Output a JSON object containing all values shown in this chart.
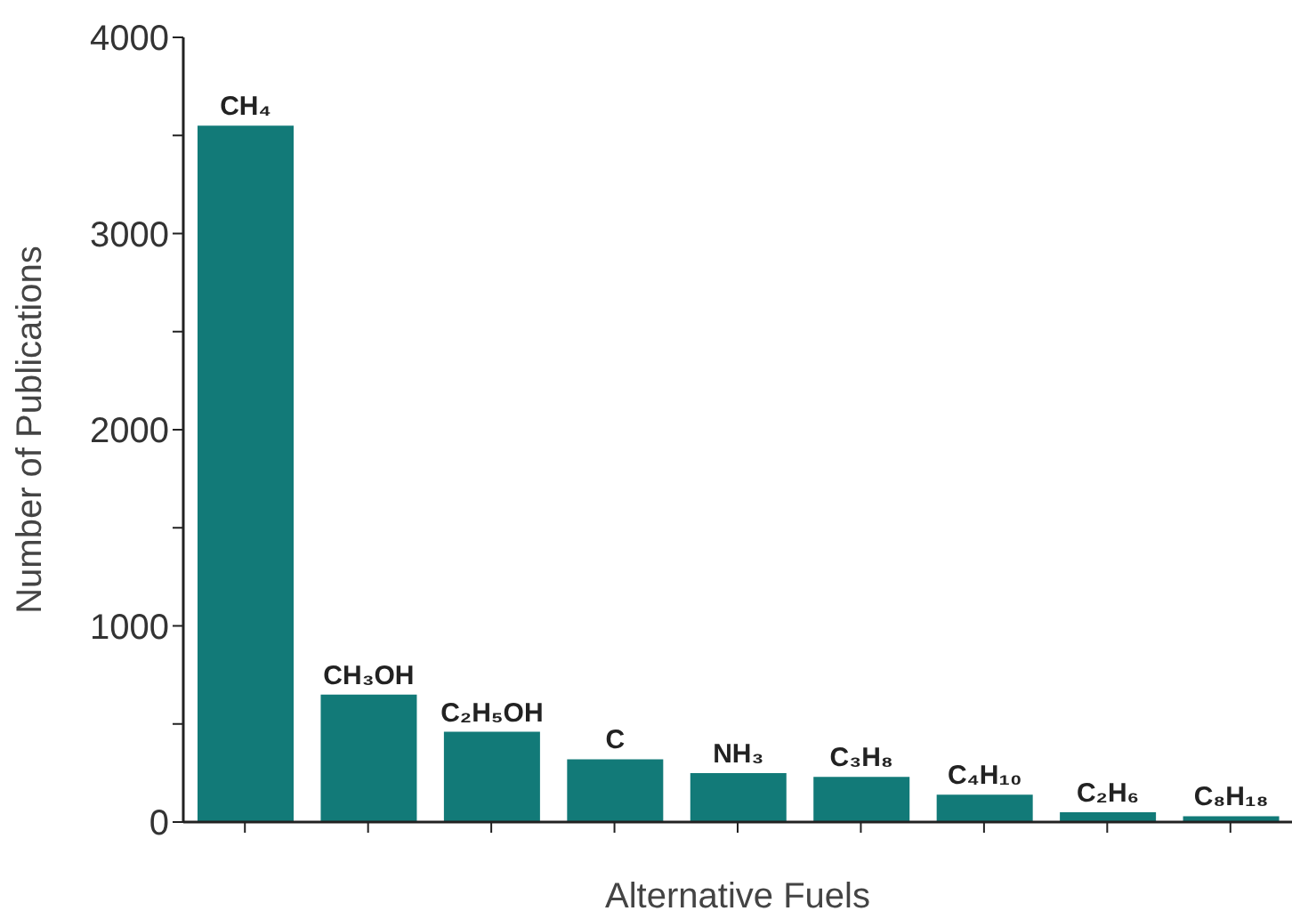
{
  "chart_data": {
    "type": "bar",
    "xlabel": "Alternative Fuels",
    "ylabel": "Number of Publications",
    "categories": [
      "CH₄",
      "CH₃OH",
      "C₂H₅OH",
      "C",
      "NH₃",
      "C₃H₈",
      "C₄H₁₀",
      "C₂H₆",
      "C₈H₁₈"
    ],
    "values": [
      3550,
      650,
      460,
      320,
      250,
      230,
      140,
      50,
      30
    ],
    "color": "#127a78",
    "ylim": [
      0,
      4000
    ],
    "yticks": [
      0,
      {
        "value": 500,
        "label": null
      },
      1000,
      {
        "value": 1500,
        "label": null
      },
      2000,
      {
        "value": 2500,
        "label": null
      },
      3000,
      {
        "value": 3500,
        "label": null
      },
      4000
    ],
    "grid": false,
    "legend": false
  }
}
